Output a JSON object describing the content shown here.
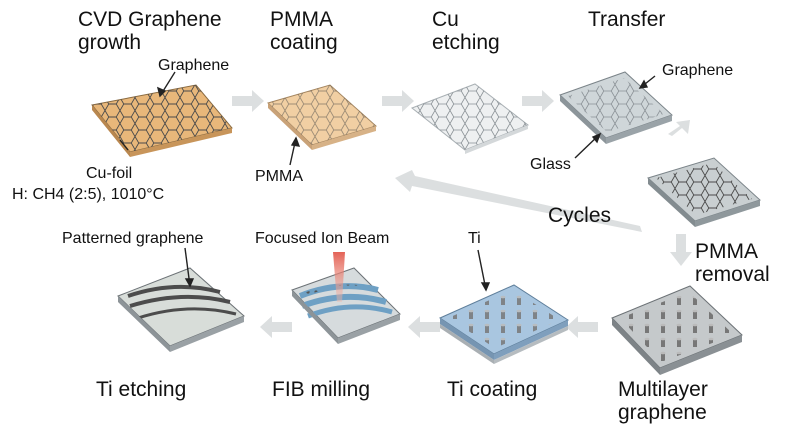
{
  "steps": {
    "cvd": "CVD Graphene\ngrowth",
    "pmma_coating": "PMMA\ncoating",
    "cu_etching": "Cu\netching",
    "transfer": "Transfer",
    "pmma_removal": "PMMA\nremoval",
    "multilayer": "Multilayer\ngraphene",
    "ti_coating": "Ti coating",
    "fib_milling": "FIB milling",
    "ti_etching": "Ti etching"
  },
  "callouts": {
    "graphene_1": "Graphene",
    "cu_foil": "Cu-foil",
    "conditions": "H: CH4 (2:5), 1010°C",
    "pmma": "PMMA",
    "graphene_2": "Graphene",
    "glass": "Glass",
    "cycles": "Cycles",
    "ti": "Ti",
    "focused_ion_beam": "Focused Ion Beam",
    "patterned_graphene": "Patterned graphene"
  },
  "colors": {
    "cu_foil": "#e8b77a",
    "pmma_layer": "#f1cfa3",
    "glass": "#cfd6d9",
    "ti_layer": "#a9c6e0",
    "arrow": "#d6d9da",
    "beam": "#e25a4e"
  }
}
